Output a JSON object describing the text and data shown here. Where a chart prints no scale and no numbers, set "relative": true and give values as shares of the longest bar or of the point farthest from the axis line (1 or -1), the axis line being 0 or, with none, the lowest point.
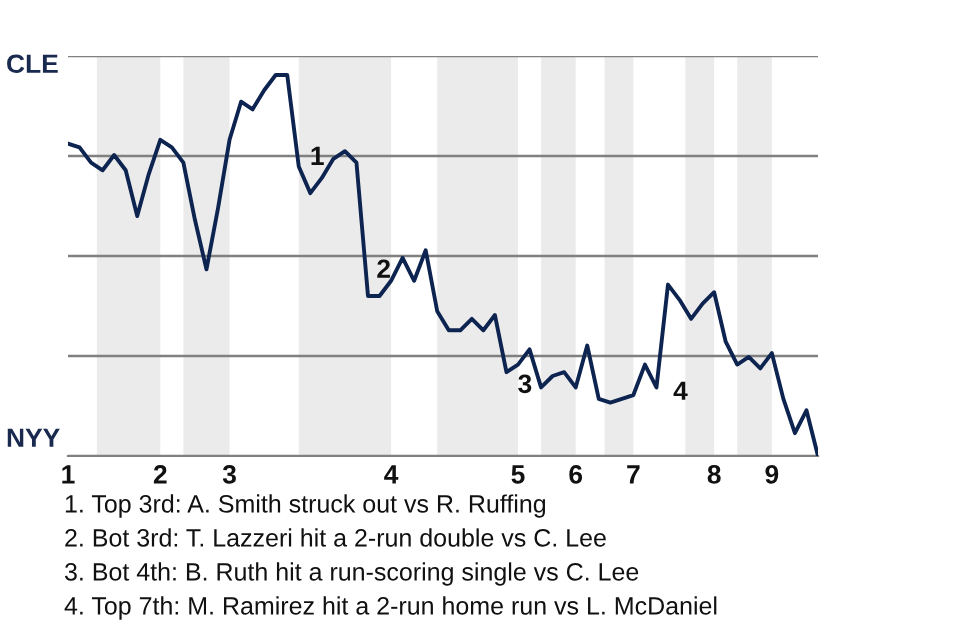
{
  "chart_data": {
    "type": "line",
    "relative": true,
    "tick_labels": "x",
    "categories": [
      "1",
      null,
      null,
      null,
      null,
      null,
      null,
      null,
      "2",
      null,
      null,
      null,
      null,
      null,
      "3",
      null,
      null,
      null,
      null,
      null,
      null,
      null,
      null,
      null,
      null,
      null,
      null,
      null,
      "4",
      null,
      null,
      null,
      null,
      null,
      null,
      null,
      null,
      null,
      null,
      "5",
      null,
      null,
      null,
      null,
      "6",
      null,
      null,
      null,
      null,
      "7",
      null,
      null,
      null,
      null,
      null,
      null,
      "8",
      null,
      null,
      null,
      null,
      "9",
      null,
      null,
      null,
      null
    ],
    "grid": "y",
    "marker": "none",
    "line_style": "solid",
    "series": [
      {
        "color": "#0d2451",
        "values": [
          0.82,
          0.81,
          0.77,
          0.75,
          0.79,
          0.75,
          0.63,
          0.74,
          0.83,
          0.81,
          0.77,
          0.62,
          0.49,
          0.65,
          0.83,
          0.93,
          0.91,
          0.96,
          1,
          1,
          0.76,
          0.69,
          0.73,
          0.78,
          0.8,
          0.77,
          0.42,
          0.42,
          0.46,
          0.52,
          0.46,
          0.54,
          0.38,
          0.33,
          0.33,
          0.36,
          0.33,
          0.37,
          0.22,
          0.24,
          0.28,
          0.18,
          0.21,
          0.22,
          0.18,
          0.29,
          0.15,
          0.14,
          0.15,
          0.16,
          0.24,
          0.18,
          0.45,
          0.41,
          0.36,
          0.4,
          0.43,
          0.3,
          0.24,
          0.26,
          0.23,
          0.27,
          0.15,
          0.06,
          0.12,
          0
        ]
      }
    ],
    "annotations": [
      "CLE",
      "NYY",
      "1",
      "2",
      "3",
      "4",
      "1. Top 3rd: A. Smith struck out vs R. Ruffing",
      "2. Bot 3rd: T. Lazzeri hit a 2-run double vs C. Lee",
      "3. Bot 4th: B. Ruth hit a run-scoring single vs C. Lee",
      "4. Top 7th: M. Ramirez hit a 2-run home run vs L. McDaniel"
    ]
  }
}
